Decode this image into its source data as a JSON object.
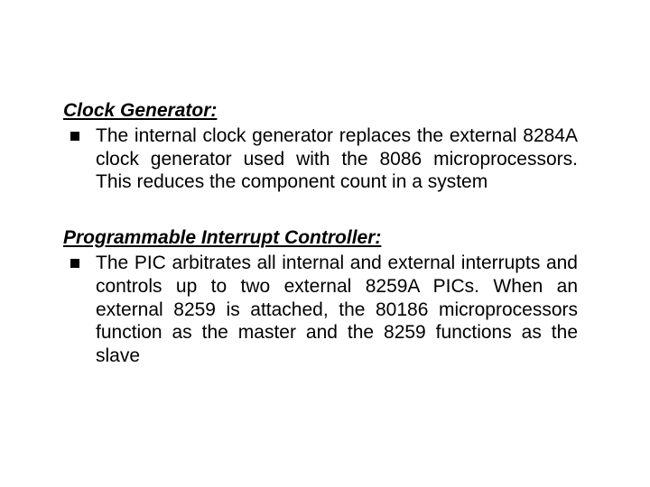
{
  "section1": {
    "heading": "Clock Generator:",
    "body": "The internal clock generator replaces the external 8284A clock generator used with the 8086 microprocessors. This reduces the component count in a system"
  },
  "section2": {
    "heading": "Programmable Interrupt Controller:",
    "body": "The PIC arbitrates all internal and external interrupts and controls up to two external 8259A PICs. When an external 8259 is attached, the 80186 microprocessors function as the master and the 8259 functions as the slave"
  }
}
